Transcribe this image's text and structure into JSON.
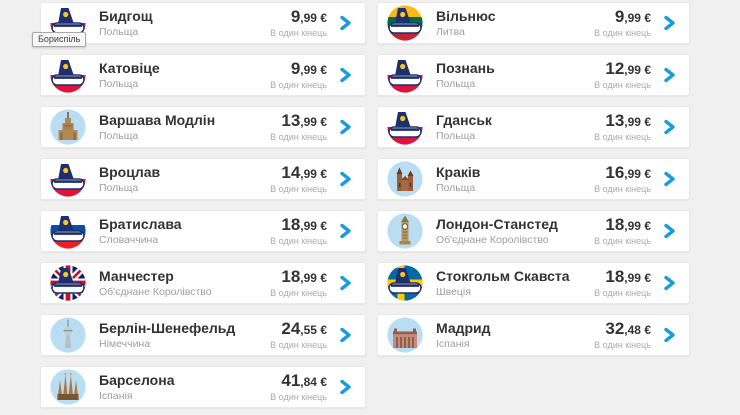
{
  "tooltip": {
    "text": "Бориспіль"
  },
  "card_labels": {
    "one_way": "В один кінець"
  },
  "colors": {
    "page_bg": "#f0f0f0",
    "card_bg": "#ffffff",
    "accent_blue": "#199cdb",
    "title_text": "#333333",
    "subtitle_text": "#9e9e9e",
    "landmark_circle_bg": "#b9def4",
    "tail_navy": "#1e2f6d",
    "tail_yellow": "#f7c81e",
    "flags": {
      "poland": [
        "#ffffff",
        "#dd153c"
      ],
      "lithuania": [
        "#fdb913",
        "#006a44",
        "#c1272d"
      ],
      "slovakia": [
        "#ffffff",
        "#0b4ea2",
        "#ee1c25"
      ],
      "uk_blue": "#012169",
      "uk_red": "#c8102e",
      "sweden_blue": "#006aa7",
      "sweden_yellow": "#fecc00"
    }
  },
  "columns": [
    {
      "cards": [
        {
          "title": "Бидгощ",
          "country": "Польща",
          "price": {
            "whole": "9",
            "fraction": "99",
            "currency": "€"
          },
          "icon": {
            "kind": "plane-tail",
            "flag": "poland",
            "name": "plane-tail-poland-flag-icon"
          }
        },
        {
          "title": "Катовіце",
          "country": "Польща",
          "price": {
            "whole": "9",
            "fraction": "99",
            "currency": "€"
          },
          "icon": {
            "kind": "plane-tail",
            "flag": "poland",
            "name": "plane-tail-poland-flag-icon"
          }
        },
        {
          "title": "Варшава Модлін",
          "country": "Польща",
          "price": {
            "whole": "13",
            "fraction": "99",
            "currency": "€"
          },
          "icon": {
            "kind": "landmark",
            "glyph": "warsaw-palace",
            "name": "palace-of-culture-landmark-icon"
          }
        },
        {
          "title": "Вроцлав",
          "country": "Польща",
          "price": {
            "whole": "14",
            "fraction": "99",
            "currency": "€"
          },
          "icon": {
            "kind": "plane-tail",
            "flag": "poland",
            "name": "plane-tail-poland-flag-icon"
          }
        },
        {
          "title": "Братислава",
          "country": "Словаччина",
          "price": {
            "whole": "18",
            "fraction": "99",
            "currency": "€"
          },
          "icon": {
            "kind": "plane-tail",
            "flag": "slovakia",
            "name": "plane-tail-slovakia-flag-icon"
          }
        },
        {
          "title": "Манчестер",
          "country": "Об'єднане Королівство",
          "price": {
            "whole": "18",
            "fraction": "99",
            "currency": "€"
          },
          "icon": {
            "kind": "plane-tail",
            "flag": "uk",
            "name": "plane-tail-uk-flag-icon"
          }
        },
        {
          "title": "Берлін-Шенефельд",
          "country": "Німеччина",
          "price": {
            "whole": "24",
            "fraction": "55",
            "currency": "€"
          },
          "icon": {
            "kind": "landmark",
            "glyph": "berlin-tv-tower",
            "name": "berlin-tv-tower-landmark-icon"
          }
        },
        {
          "title": "Барселона",
          "country": "Іспанія",
          "price": {
            "whole": "41",
            "fraction": "84",
            "currency": "€"
          },
          "icon": {
            "kind": "landmark",
            "glyph": "sagrada-familia",
            "name": "sagrada-familia-landmark-icon"
          }
        }
      ]
    },
    {
      "cards": [
        {
          "title": "Вільнюс",
          "country": "Литва",
          "price": {
            "whole": "9",
            "fraction": "99",
            "currency": "€"
          },
          "icon": {
            "kind": "plane-tail",
            "flag": "lithuania",
            "name": "plane-tail-lithuania-flag-icon"
          }
        },
        {
          "title": "Познань",
          "country": "Польща",
          "price": {
            "whole": "12",
            "fraction": "99",
            "currency": "€"
          },
          "icon": {
            "kind": "plane-tail",
            "flag": "poland",
            "name": "plane-tail-poland-flag-icon"
          }
        },
        {
          "title": "Гданськ",
          "country": "Польща",
          "price": {
            "whole": "13",
            "fraction": "99",
            "currency": "€"
          },
          "icon": {
            "kind": "plane-tail",
            "flag": "poland",
            "name": "plane-tail-poland-flag-icon"
          }
        },
        {
          "title": "Краків",
          "country": "Польща",
          "price": {
            "whole": "16",
            "fraction": "99",
            "currency": "€"
          },
          "icon": {
            "kind": "landmark",
            "glyph": "krakow-basilica",
            "name": "krakow-basilica-landmark-icon"
          }
        },
        {
          "title": "Лондон-Станстед",
          "country": "Об'єднане Королівство",
          "price": {
            "whole": "18",
            "fraction": "99",
            "currency": "€"
          },
          "icon": {
            "kind": "landmark",
            "glyph": "big-ben",
            "name": "big-ben-landmark-icon"
          }
        },
        {
          "title": "Стокгольм Скавста",
          "country": "Швеція",
          "price": {
            "whole": "18",
            "fraction": "99",
            "currency": "€"
          },
          "icon": {
            "kind": "plane-tail",
            "flag": "sweden",
            "name": "plane-tail-sweden-flag-icon"
          }
        },
        {
          "title": "Мадрид",
          "country": "Іспанія",
          "price": {
            "whole": "32",
            "fraction": "48",
            "currency": "€"
          },
          "icon": {
            "kind": "landmark",
            "glyph": "madrid-royal-palace",
            "name": "madrid-royal-palace-landmark-icon"
          }
        }
      ]
    }
  ]
}
